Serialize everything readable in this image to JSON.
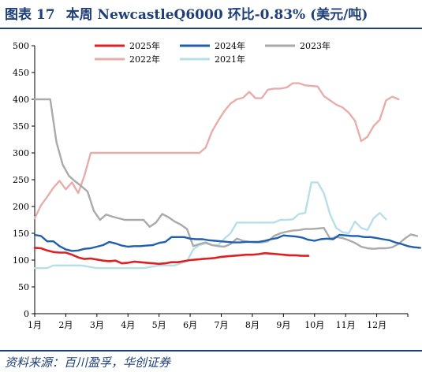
{
  "header": {
    "figure_label": "图表 17",
    "title": "本周 NewcastleQ6000 环比-0.83% (美元/吨)"
  },
  "footer": {
    "source": "资料来源：百川盈孚，华创证券"
  },
  "chart_data": {
    "type": "line",
    "title": "本周 NewcastleQ6000 环比-0.83% (美元/吨)",
    "xlabel": "",
    "ylabel": "",
    "ylim": [
      0,
      500
    ],
    "xlim": [
      0,
      12
    ],
    "yticks": [
      0,
      50,
      100,
      150,
      200,
      250,
      300,
      350,
      400,
      450,
      500
    ],
    "xticks": [
      "1月",
      "2月",
      "3月",
      "4月",
      "5月",
      "6月",
      "7月",
      "8月",
      "9月",
      "10月",
      "11月",
      "12月"
    ],
    "grid": false,
    "legend_position": "top-center",
    "series": [
      {
        "name": "2025年",
        "color": "#e02020",
        "width": 2.6,
        "points": [
          [
            0,
            123
          ],
          [
            0.2,
            122
          ],
          [
            0.4,
            118
          ],
          [
            0.6,
            115
          ],
          [
            0.8,
            114
          ],
          [
            1.0,
            114
          ],
          [
            1.2,
            110
          ],
          [
            1.4,
            105
          ],
          [
            1.6,
            102
          ],
          [
            1.8,
            103
          ],
          [
            2.0,
            101
          ],
          [
            2.2,
            99
          ],
          [
            2.4,
            98
          ],
          [
            2.6,
            99
          ],
          [
            2.8,
            94
          ],
          [
            3.0,
            95
          ],
          [
            3.2,
            97
          ],
          [
            3.4,
            96
          ],
          [
            3.6,
            95
          ],
          [
            3.8,
            94
          ],
          [
            4.0,
            93
          ],
          [
            4.2,
            94
          ],
          [
            4.4,
            96
          ],
          [
            4.6,
            96
          ],
          [
            4.8,
            98
          ],
          [
            5.0,
            100
          ],
          [
            5.2,
            101
          ],
          [
            5.4,
            102
          ],
          [
            5.6,
            103
          ],
          [
            5.8,
            104
          ],
          [
            6.0,
            106
          ],
          [
            6.2,
            107
          ],
          [
            6.4,
            108
          ],
          [
            6.6,
            109
          ],
          [
            6.8,
            110
          ],
          [
            7.0,
            110
          ],
          [
            7.2,
            111
          ],
          [
            7.4,
            113
          ],
          [
            7.6,
            112
          ],
          [
            7.8,
            111
          ],
          [
            8.0,
            110
          ],
          [
            8.2,
            109
          ],
          [
            8.4,
            109
          ],
          [
            8.6,
            108
          ],
          [
            8.8,
            108
          ]
        ]
      },
      {
        "name": "2024年",
        "color": "#1f5fae",
        "width": 2.4,
        "points": [
          [
            0,
            147
          ],
          [
            0.2,
            145
          ],
          [
            0.4,
            135
          ],
          [
            0.6,
            135
          ],
          [
            0.8,
            126
          ],
          [
            1.0,
            120
          ],
          [
            1.2,
            117
          ],
          [
            1.4,
            118
          ],
          [
            1.6,
            121
          ],
          [
            1.8,
            122
          ],
          [
            2.0,
            125
          ],
          [
            2.2,
            128
          ],
          [
            2.4,
            134
          ],
          [
            2.6,
            131
          ],
          [
            2.8,
            127
          ],
          [
            3.0,
            125
          ],
          [
            3.2,
            126
          ],
          [
            3.4,
            126
          ],
          [
            3.6,
            127
          ],
          [
            3.8,
            128
          ],
          [
            4.0,
            132
          ],
          [
            4.2,
            134
          ],
          [
            4.4,
            143
          ],
          [
            4.6,
            143
          ],
          [
            4.8,
            143
          ],
          [
            5.0,
            140
          ],
          [
            5.2,
            139
          ],
          [
            5.4,
            139
          ],
          [
            5.6,
            137
          ],
          [
            5.8,
            136
          ],
          [
            6.0,
            135
          ],
          [
            6.2,
            134
          ],
          [
            6.4,
            133
          ],
          [
            6.6,
            133
          ],
          [
            6.8,
            134
          ],
          [
            7.0,
            134
          ],
          [
            7.2,
            134
          ],
          [
            7.4,
            136
          ],
          [
            7.6,
            139
          ],
          [
            7.8,
            141
          ],
          [
            8.0,
            146
          ],
          [
            8.2,
            145
          ],
          [
            8.4,
            144
          ],
          [
            8.6,
            142
          ],
          [
            8.8,
            138
          ],
          [
            9.0,
            136
          ],
          [
            9.2,
            139
          ],
          [
            9.4,
            140
          ],
          [
            9.6,
            139
          ],
          [
            9.8,
            147
          ],
          [
            10.0,
            146
          ],
          [
            10.2,
            145
          ],
          [
            10.4,
            145
          ],
          [
            10.6,
            143
          ],
          [
            10.8,
            143
          ],
          [
            11.0,
            141
          ],
          [
            11.2,
            139
          ],
          [
            11.4,
            137
          ],
          [
            11.6,
            133
          ],
          [
            11.8,
            130
          ],
          [
            12.0,
            126
          ],
          [
            12.2,
            124
          ],
          [
            12.4,
            123
          ]
        ]
      },
      {
        "name": "2023年",
        "color": "#aaaaaa",
        "width": 2.4,
        "points": [
          [
            0,
            400
          ],
          [
            0.2,
            400
          ],
          [
            0.4,
            400
          ],
          [
            0.5,
            400
          ],
          [
            0.7,
            320
          ],
          [
            0.9,
            278
          ],
          [
            1.1,
            257
          ],
          [
            1.3,
            247
          ],
          [
            1.5,
            238
          ],
          [
            1.7,
            228
          ],
          [
            1.9,
            192
          ],
          [
            2.1,
            175
          ],
          [
            2.3,
            185
          ],
          [
            2.5,
            181
          ],
          [
            2.7,
            178
          ],
          [
            2.9,
            175
          ],
          [
            3.1,
            175
          ],
          [
            3.3,
            175
          ],
          [
            3.5,
            175
          ],
          [
            3.7,
            162
          ],
          [
            3.9,
            170
          ],
          [
            4.1,
            186
          ],
          [
            4.3,
            180
          ],
          [
            4.5,
            172
          ],
          [
            4.7,
            166
          ],
          [
            4.9,
            158
          ],
          [
            5.1,
            126
          ],
          [
            5.3,
            130
          ],
          [
            5.5,
            133
          ],
          [
            5.7,
            128
          ],
          [
            5.9,
            126
          ],
          [
            6.1,
            125
          ],
          [
            6.3,
            130
          ],
          [
            6.5,
            140
          ],
          [
            6.7,
            136
          ],
          [
            6.9,
            134
          ],
          [
            7.1,
            133
          ],
          [
            7.3,
            133
          ],
          [
            7.5,
            135
          ],
          [
            7.7,
            145
          ],
          [
            7.9,
            150
          ],
          [
            8.1,
            153
          ],
          [
            8.3,
            155
          ],
          [
            8.5,
            156
          ],
          [
            8.7,
            158
          ],
          [
            8.9,
            158
          ],
          [
            9.1,
            159
          ],
          [
            9.3,
            160
          ],
          [
            9.5,
            140
          ],
          [
            9.7,
            143
          ],
          [
            9.9,
            141
          ],
          [
            10.1,
            137
          ],
          [
            10.3,
            132
          ],
          [
            10.5,
            125
          ],
          [
            10.7,
            122
          ],
          [
            10.9,
            121
          ],
          [
            11.1,
            122
          ],
          [
            11.3,
            122
          ],
          [
            11.5,
            124
          ],
          [
            11.7,
            130
          ],
          [
            11.9,
            140
          ],
          [
            12.1,
            148
          ],
          [
            12.3,
            145
          ]
        ]
      },
      {
        "name": "2022年",
        "color": "#e8adab",
        "width": 2.4,
        "points": [
          [
            0,
            178
          ],
          [
            0.2,
            202
          ],
          [
            0.4,
            218
          ],
          [
            0.6,
            235
          ],
          [
            0.8,
            248
          ],
          [
            1.0,
            232
          ],
          [
            1.2,
            245
          ],
          [
            1.4,
            225
          ],
          [
            1.6,
            258
          ],
          [
            1.8,
            300
          ],
          [
            2.0,
            300
          ],
          [
            2.5,
            300
          ],
          [
            3.0,
            300
          ],
          [
            3.5,
            300
          ],
          [
            4.0,
            300
          ],
          [
            4.5,
            300
          ],
          [
            5.0,
            300
          ],
          [
            5.3,
            300
          ],
          [
            5.5,
            310
          ],
          [
            5.7,
            340
          ],
          [
            5.9,
            360
          ],
          [
            6.1,
            378
          ],
          [
            6.3,
            392
          ],
          [
            6.5,
            400
          ],
          [
            6.7,
            403
          ],
          [
            6.9,
            414
          ],
          [
            7.1,
            402
          ],
          [
            7.3,
            402
          ],
          [
            7.5,
            418
          ],
          [
            7.7,
            420
          ],
          [
            7.9,
            420
          ],
          [
            8.1,
            422
          ],
          [
            8.3,
            430
          ],
          [
            8.5,
            430
          ],
          [
            8.7,
            426
          ],
          [
            8.9,
            425
          ],
          [
            9.1,
            424
          ],
          [
            9.3,
            406
          ],
          [
            9.5,
            398
          ],
          [
            9.7,
            390
          ],
          [
            9.9,
            385
          ],
          [
            10.1,
            375
          ],
          [
            10.3,
            360
          ],
          [
            10.5,
            322
          ],
          [
            10.7,
            330
          ],
          [
            10.9,
            350
          ],
          [
            11.1,
            362
          ],
          [
            11.3,
            398
          ],
          [
            11.5,
            405
          ],
          [
            11.7,
            400
          ]
        ]
      },
      {
        "name": "2021年",
        "color": "#b7dfe9",
        "width": 2.4,
        "points": [
          [
            0,
            85
          ],
          [
            0.4,
            85
          ],
          [
            0.6,
            90
          ],
          [
            1.0,
            90
          ],
          [
            1.5,
            90
          ],
          [
            2.0,
            85
          ],
          [
            2.5,
            85
          ],
          [
            3.0,
            85
          ],
          [
            3.5,
            85
          ],
          [
            4.0,
            90
          ],
          [
            4.5,
            90
          ],
          [
            4.9,
            98
          ],
          [
            5.1,
            120
          ],
          [
            5.3,
            128
          ],
          [
            5.5,
            131
          ],
          [
            5.7,
            128
          ],
          [
            5.9,
            128
          ],
          [
            6.1,
            140
          ],
          [
            6.3,
            150
          ],
          [
            6.5,
            170
          ],
          [
            6.7,
            170
          ],
          [
            6.9,
            170
          ],
          [
            7.1,
            170
          ],
          [
            7.3,
            170
          ],
          [
            7.5,
            170
          ],
          [
            7.7,
            170
          ],
          [
            7.9,
            175
          ],
          [
            8.1,
            175
          ],
          [
            8.3,
            176
          ],
          [
            8.5,
            186
          ],
          [
            8.7,
            188
          ],
          [
            8.9,
            245
          ],
          [
            9.1,
            245
          ],
          [
            9.3,
            225
          ],
          [
            9.5,
            185
          ],
          [
            9.7,
            160
          ],
          [
            9.9,
            152
          ],
          [
            10.1,
            150
          ],
          [
            10.3,
            172
          ],
          [
            10.5,
            160
          ],
          [
            10.7,
            156
          ],
          [
            10.9,
            178
          ],
          [
            11.1,
            188
          ],
          [
            11.3,
            176
          ]
        ]
      }
    ]
  }
}
